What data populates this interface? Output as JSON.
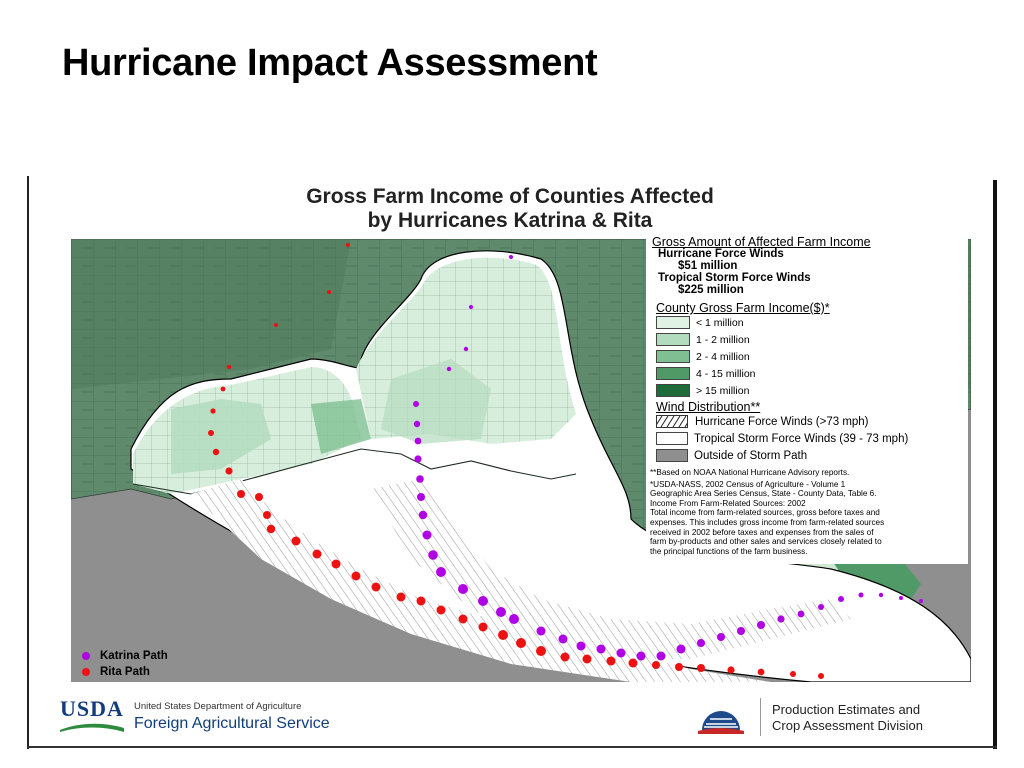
{
  "slide_title": "Hurricane Impact Assessment",
  "map": {
    "title_line1": "Gross Farm Income of Counties Affected",
    "title_line2": "by Hurricanes Katrina & Rita"
  },
  "legend": {
    "affected_heading": "Gross Amount of Affected Farm Income",
    "hurricane_label": "Hurricane Force Winds",
    "hurricane_value": "$51 million",
    "tropical_label": "Tropical Storm Force Winds",
    "tropical_value": "$225 million",
    "county_heading": "County Gross Farm Income($)",
    "county_heading_mark": "*",
    "income_classes": [
      {
        "label": "< 1 million",
        "color": "#dff2e4"
      },
      {
        "label": "1 - 2 million",
        "color": "#b3dcbf"
      },
      {
        "label": "2 - 4 million",
        "color": "#7fbf92"
      },
      {
        "label": "4 - 15 million",
        "color": "#4f9a66"
      },
      {
        "label": "> 15 million",
        "color": "#1f6b3a"
      }
    ],
    "wind_heading": "Wind Distribution",
    "wind_heading_mark": "**",
    "wind_classes": [
      {
        "label": "Hurricane Force Winds (>73 mph)",
        "swatch": "hatch"
      },
      {
        "label": "Tropical Storm Force Winds (39 - 73 mph)",
        "swatch": "white"
      },
      {
        "label": "Outside of Storm Path",
        "swatch": "gray"
      }
    ],
    "note_noaa": "**Based on NOAA National Hurricane Advisory reports.",
    "note_usda_1": "*USDA-NASS, 2002 Census of Agriculture - Volume 1",
    "note_usda_2": "Geographic Area Series Census, State - County Data, Table 6.",
    "note_usda_3": "Income From Farm-Related Sources: 2002",
    "note_usda_4": "Total income from farm-related sources, gross before taxes and",
    "note_usda_5": "expenses. This includes gross income from farm-related sources",
    "note_usda_6": "received in 2002 before taxes and expenses from the sales of",
    "note_usda_7": "farm by-products and other sales and services closely related to",
    "note_usda_8": "the principal functions of the farm business."
  },
  "tracks": {
    "katrina_label": "Katrina Path",
    "katrina_color": "#b000e6",
    "rita_label": "Rita Path",
    "rita_color": "#ee1111"
  },
  "footer": {
    "usda_logo": "USDA",
    "usda_dept": "United States Department of Agriculture",
    "usda_service": "Foreign Agricultural Service",
    "pecad_line1": "Production Estimates and",
    "pecad_line2": "Crop Assessment Division"
  }
}
